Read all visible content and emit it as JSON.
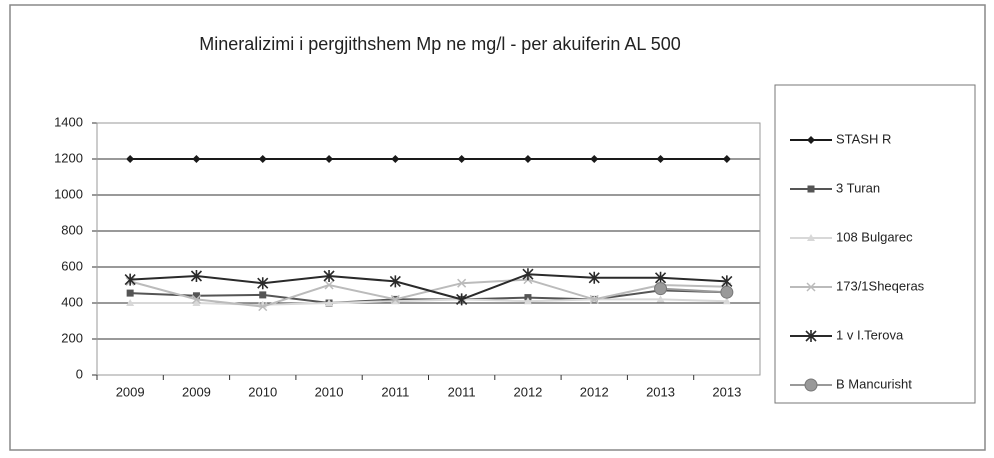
{
  "chart_data": {
    "type": "line",
    "title": "Mineralizimi i pergjithshem Mp ne mg/l - per akuiferin AL  500",
    "categories": [
      "2009",
      "2009",
      "2010",
      "2010",
      "2011",
      "2011",
      "2012",
      "2012",
      "2013",
      "2013"
    ],
    "series": [
      {
        "name": "STASH R",
        "color": "#1a1a1a",
        "marker": "diamond",
        "values": [
          1200,
          1200,
          1200,
          1200,
          1200,
          1200,
          1200,
          1200,
          1200,
          1200
        ]
      },
      {
        "name": "3 Turan",
        "color": "#555555",
        "marker": "square",
        "values": [
          455,
          440,
          445,
          400,
          420,
          420,
          430,
          420,
          470,
          460
        ]
      },
      {
        "name": "108 Bulgarec",
        "color": "#d8d8d8",
        "marker": "triangle",
        "values": [
          400,
          400,
          390,
          400,
          410,
          420,
          410,
          420,
          420,
          410
        ]
      },
      {
        "name": "173/1Sheqeras",
        "color": "#bbbbbb",
        "marker": "x",
        "values": [
          520,
          420,
          380,
          500,
          420,
          510,
          530,
          420,
          500,
          490
        ]
      },
      {
        "name": "1 v I.Terova",
        "color": "#2a2a2a",
        "marker": "star",
        "values": [
          530,
          550,
          510,
          550,
          520,
          420,
          560,
          540,
          540,
          520
        ]
      },
      {
        "name": "B Mancurisht",
        "color": "#999999",
        "marker": "circle",
        "values": [
          null,
          null,
          null,
          null,
          null,
          null,
          null,
          null,
          480,
          460
        ]
      }
    ],
    "ylim": [
      0,
      1400
    ],
    "yticks": [
      0,
      200,
      400,
      600,
      800,
      1000,
      1200,
      1400
    ],
    "grid": true
  }
}
